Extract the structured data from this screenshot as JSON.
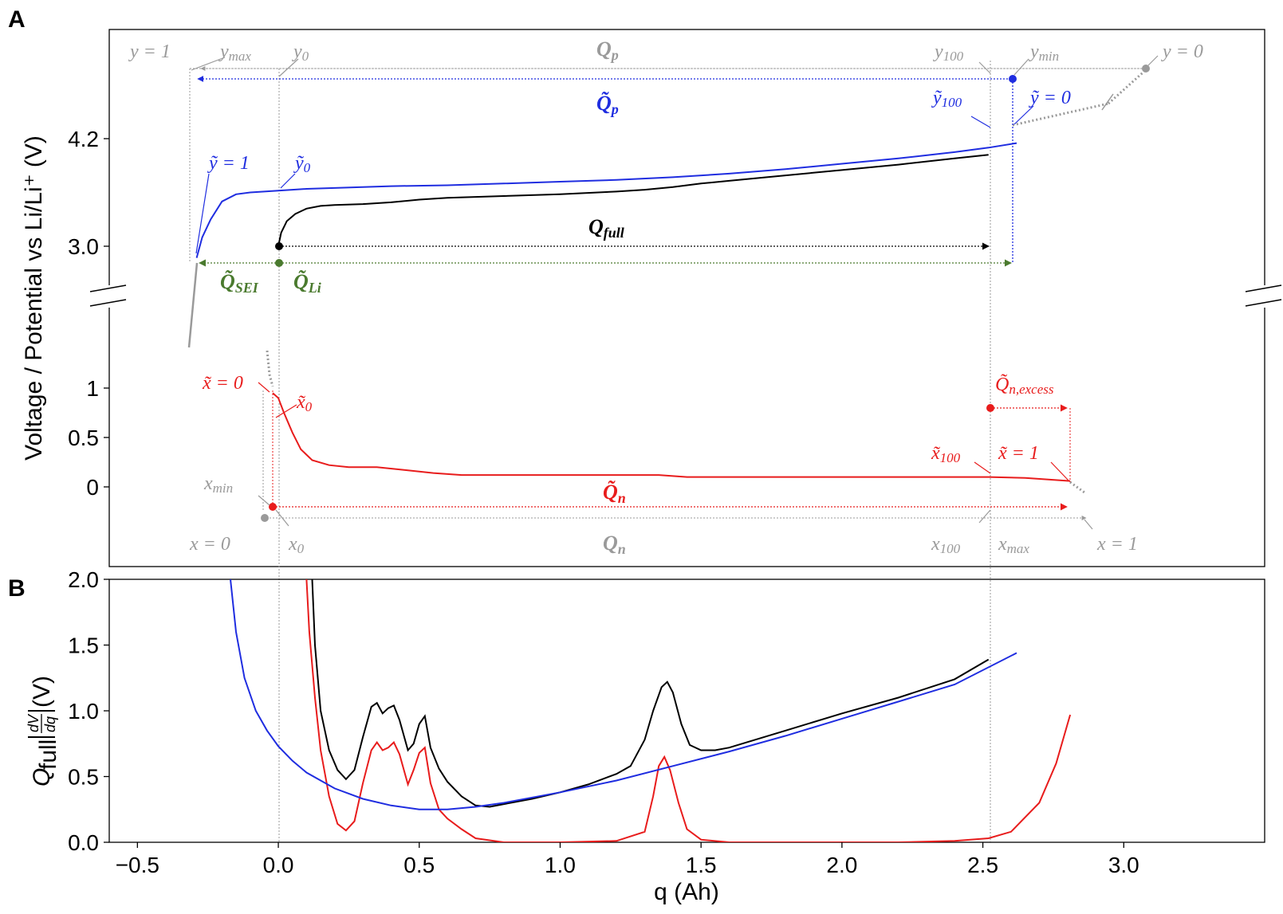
{
  "panel_labels": {
    "a": "A",
    "b": "B"
  },
  "colors": {
    "positive": "#1f2de0",
    "negative": "#e81c1c",
    "full": "#000000",
    "li": "#4a7a2e",
    "gray": "#9a9a9a"
  },
  "chart_data": [
    {
      "id": "A",
      "type": "line",
      "ylabel": "Voltage / Potential vs Li/Li⁺ (V)",
      "upper_axis": {
        "ticks": [
          3.0,
          4.2
        ],
        "tick_labels": [
          "3.0",
          "4.2"
        ]
      },
      "lower_axis": {
        "ticks": [
          0,
          0.5,
          1
        ],
        "tick_labels": [
          "0",
          "0.5",
          "1"
        ]
      },
      "broken_axis": true,
      "series": [
        {
          "key": "pos",
          "x": [
            -0.29,
            -0.27,
            -0.24,
            -0.2,
            -0.15,
            -0.1,
            -0.05,
            0,
            0.1,
            0.2,
            0.4,
            0.6,
            0.8,
            1.0,
            1.2,
            1.4,
            1.6,
            1.8,
            2.0,
            2.2,
            2.4,
            2.52,
            2.62
          ],
          "y": [
            2.87,
            3.1,
            3.3,
            3.5,
            3.58,
            3.6,
            3.61,
            3.62,
            3.64,
            3.65,
            3.67,
            3.68,
            3.7,
            3.72,
            3.74,
            3.77,
            3.81,
            3.86,
            3.92,
            3.98,
            4.05,
            4.1,
            4.15
          ]
        },
        {
          "key": "full",
          "x": [
            0,
            0.01,
            0.03,
            0.06,
            0.1,
            0.15,
            0.2,
            0.3,
            0.4,
            0.5,
            0.6,
            0.8,
            1.0,
            1.2,
            1.3,
            1.4,
            1.5,
            1.6,
            1.8,
            2.0,
            2.2,
            2.4,
            2.52
          ],
          "y": [
            3.0,
            3.15,
            3.28,
            3.36,
            3.42,
            3.45,
            3.46,
            3.47,
            3.49,
            3.52,
            3.54,
            3.56,
            3.58,
            3.61,
            3.63,
            3.66,
            3.7,
            3.73,
            3.79,
            3.85,
            3.91,
            3.98,
            4.02
          ]
        },
        {
          "key": "neg",
          "x": [
            -0.02,
            0,
            0.02,
            0.05,
            0.08,
            0.12,
            0.18,
            0.25,
            0.35,
            0.45,
            0.55,
            0.65,
            0.8,
            1.0,
            1.2,
            1.35,
            1.45,
            1.6,
            1.8,
            2.0,
            2.2,
            2.4,
            2.52,
            2.65,
            2.81
          ],
          "y": [
            0.95,
            0.9,
            0.75,
            0.55,
            0.38,
            0.27,
            0.22,
            0.2,
            0.2,
            0.17,
            0.14,
            0.12,
            0.12,
            0.12,
            0.12,
            0.12,
            0.1,
            0.1,
            0.1,
            0.1,
            0.1,
            0.1,
            0.1,
            0.09,
            0.06
          ]
        }
      ],
      "labels": {
        "q_p": "Q",
        "q_p_sub": "p",
        "qt_p": "Q̃",
        "qt_p_sub": "p",
        "q_full": "Q",
        "q_full_sub": "full",
        "qt_sei": "Q̃",
        "qt_sei_sub": "SEI",
        "qt_li": "Q̃",
        "qt_li_sub": "Li",
        "qt_n": "Q̃",
        "qt_n_sub": "n",
        "q_n": "Q",
        "q_n_sub": "n",
        "qt_n_excess": "Q̃",
        "qt_n_excess_sub": "n,excess",
        "y_eq_1": "y = 1",
        "y_max": "y",
        "y_max_sub": "max",
        "y_0": "y",
        "y_0_sub": "0",
        "y_100": "y",
        "y_100_sub": "100",
        "y_min": "y",
        "y_min_sub": "min",
        "y_eq_0": "y = 0",
        "yt_100": "ỹ",
        "yt_100_sub": "100",
        "yt_eq_0": "ỹ = 0",
        "yt_eq_1": "ỹ = 1",
        "yt_0": "ỹ",
        "yt_0_sub": "0",
        "xt_eq_0": "x̃ = 0",
        "xt_0": "x̃",
        "xt_0_sub": "0",
        "xt_100": "x̃",
        "xt_100_sub": "100",
        "xt_eq_1": "x̃ = 1",
        "x_min": "x",
        "x_min_sub": "min",
        "x_eq_0": "x = 0",
        "x_0": "x",
        "x_0_sub": "0",
        "x_100": "x",
        "x_100_sub": "100",
        "x_max": "x",
        "x_max_sub": "max",
        "x_eq_1": "x = 1"
      }
    },
    {
      "id": "B",
      "type": "line",
      "xlabel": "q (Ah)",
      "ylabel_parts": {
        "q": "Q",
        "sub": "full",
        "num": "dV",
        "den": "dq",
        "unit": " (V)"
      },
      "xlim": [
        -0.6,
        3.5
      ],
      "ylim": [
        0.0,
        2.0
      ],
      "x_ticks": [
        -0.5,
        0.0,
        0.5,
        1.0,
        1.5,
        2.0,
        2.5,
        3.0
      ],
      "x_tick_labels": [
        "−0.5",
        "0.0",
        "0.5",
        "1.0",
        "1.5",
        "2.0",
        "2.5",
        "3.0"
      ],
      "y_ticks": [
        0.0,
        0.5,
        1.0,
        1.5,
        2.0
      ],
      "y_tick_labels": [
        "0.0",
        "0.5",
        "1.0",
        "1.5",
        "2.0"
      ],
      "series": [
        {
          "key": "full",
          "x": [
            0.12,
            0.13,
            0.15,
            0.18,
            0.21,
            0.24,
            0.27,
            0.3,
            0.33,
            0.35,
            0.37,
            0.39,
            0.41,
            0.43,
            0.46,
            0.48,
            0.5,
            0.52,
            0.54,
            0.57,
            0.6,
            0.65,
            0.7,
            0.75,
            0.8,
            0.9,
            1.0,
            1.1,
            1.2,
            1.25,
            1.3,
            1.33,
            1.36,
            1.38,
            1.4,
            1.43,
            1.46,
            1.5,
            1.55,
            1.6,
            1.8,
            2.0,
            2.2,
            2.4,
            2.52
          ],
          "y": [
            2.0,
            1.5,
            1.0,
            0.7,
            0.55,
            0.48,
            0.55,
            0.8,
            1.03,
            1.06,
            0.98,
            1.02,
            1.04,
            0.93,
            0.7,
            0.75,
            0.9,
            0.96,
            0.72,
            0.56,
            0.46,
            0.35,
            0.28,
            0.27,
            0.29,
            0.33,
            0.38,
            0.44,
            0.52,
            0.58,
            0.78,
            1.0,
            1.18,
            1.22,
            1.14,
            0.9,
            0.74,
            0.7,
            0.7,
            0.72,
            0.85,
            0.98,
            1.1,
            1.24,
            1.39
          ]
        },
        {
          "key": "pos",
          "x": [
            -0.17,
            -0.15,
            -0.12,
            -0.08,
            -0.04,
            0.0,
            0.05,
            0.1,
            0.2,
            0.3,
            0.4,
            0.5,
            0.6,
            0.7,
            0.8,
            1.0,
            1.2,
            1.4,
            1.6,
            1.8,
            2.0,
            2.2,
            2.4,
            2.62
          ],
          "y": [
            2.0,
            1.6,
            1.25,
            1.0,
            0.85,
            0.73,
            0.62,
            0.53,
            0.41,
            0.33,
            0.28,
            0.25,
            0.25,
            0.27,
            0.3,
            0.38,
            0.47,
            0.58,
            0.69,
            0.81,
            0.94,
            1.07,
            1.2,
            1.44
          ]
        },
        {
          "key": "neg",
          "x": [
            0.1,
            0.11,
            0.13,
            0.15,
            0.18,
            0.21,
            0.24,
            0.27,
            0.3,
            0.33,
            0.35,
            0.37,
            0.39,
            0.41,
            0.43,
            0.46,
            0.48,
            0.5,
            0.52,
            0.54,
            0.57,
            0.6,
            0.65,
            0.7,
            0.8,
            1.0,
            1.2,
            1.3,
            1.33,
            1.35,
            1.37,
            1.39,
            1.42,
            1.45,
            1.5,
            1.6,
            1.8,
            2.0,
            2.2,
            2.4,
            2.52,
            2.6,
            2.7,
            2.76,
            2.81
          ],
          "y": [
            2.0,
            1.6,
            1.1,
            0.7,
            0.35,
            0.14,
            0.09,
            0.16,
            0.45,
            0.7,
            0.76,
            0.7,
            0.72,
            0.76,
            0.67,
            0.44,
            0.55,
            0.68,
            0.72,
            0.45,
            0.25,
            0.18,
            0.1,
            0.03,
            0.0,
            0.0,
            0.01,
            0.08,
            0.35,
            0.58,
            0.65,
            0.55,
            0.3,
            0.1,
            0.02,
            0.0,
            0.0,
            0.0,
            0.0,
            0.01,
            0.03,
            0.08,
            0.3,
            0.6,
            0.97
          ]
        }
      ]
    }
  ]
}
